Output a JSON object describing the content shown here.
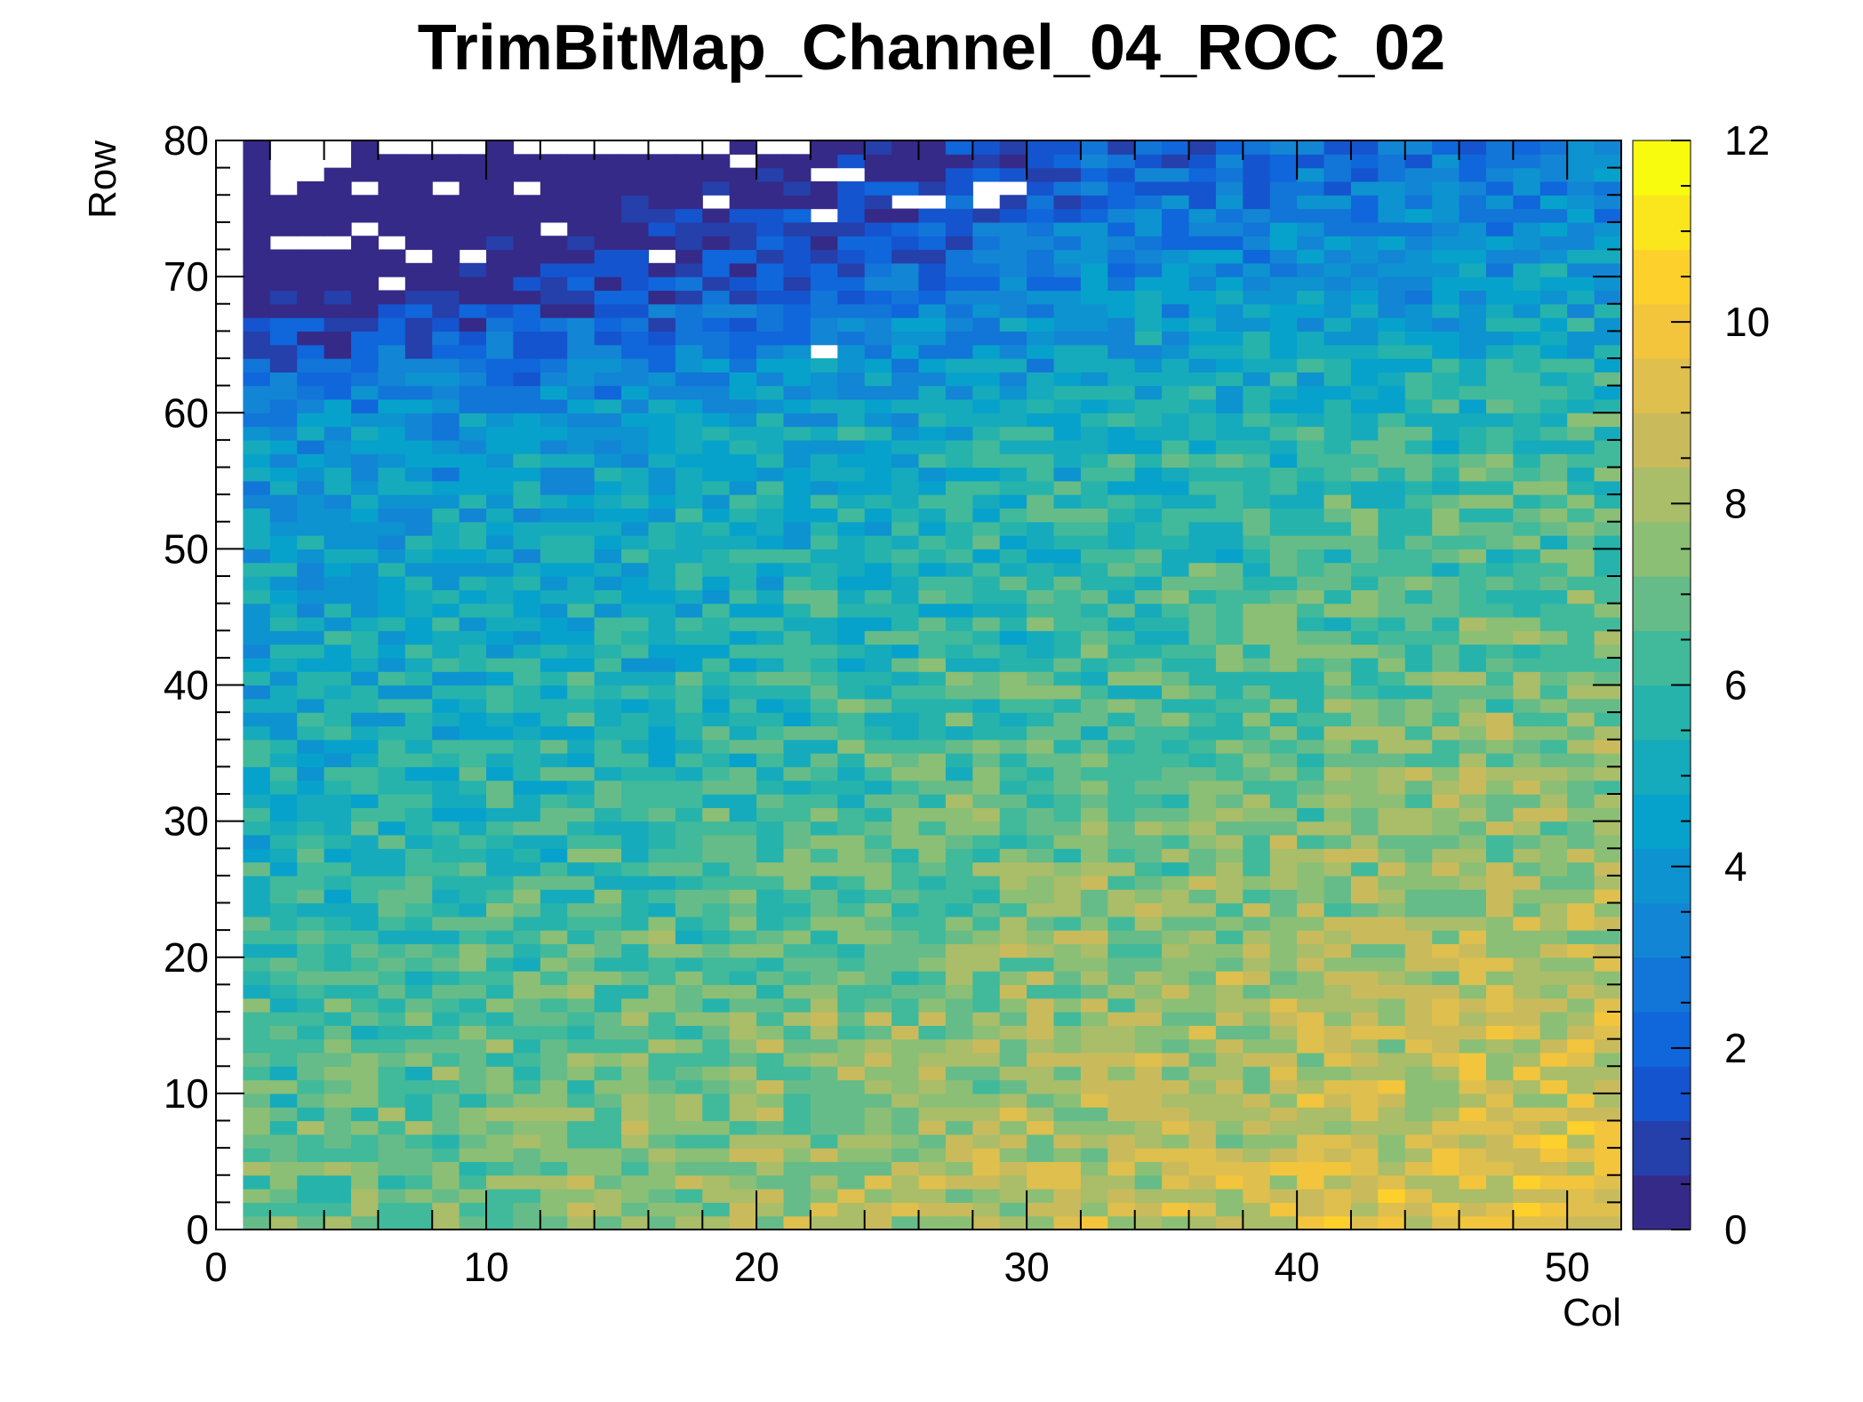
{
  "chart_data": {
    "type": "heatmap",
    "title": "TrimBitMap_Channel_04_ROC_02",
    "xlabel": "Col",
    "ylabel": "Row",
    "xlim": [
      0,
      52
    ],
    "ylim": [
      0,
      80
    ],
    "zlim": [
      0,
      12
    ],
    "x_ticks": [
      0,
      10,
      20,
      30,
      40,
      50
    ],
    "y_ticks": [
      0,
      10,
      20,
      30,
      40,
      50,
      60,
      70,
      80
    ],
    "z_ticks": [
      0,
      2,
      4,
      6,
      8,
      10,
      12
    ],
    "grid": false,
    "colorbar": "right",
    "colormap": "kBird",
    "colormap_stops": [
      "#352a87",
      "#0f5cdd",
      "#1481d6",
      "#06a4ca",
      "#2eb7a4",
      "#87bf77",
      "#d1bb59",
      "#fec832",
      "#f9fb0e"
    ],
    "empty_cell_color": "#ffffff",
    "cols": 52,
    "rows": 80,
    "description_of_values": "Trim bit per pixel. Near zero/empty (white) in the top-left corner (rows 65-79, cols 0-30), low blue values (2-4) across rows 55-79, mid values (5-7) in the center, and high yellow values (8-11) toward the bottom-right (rows 0-25, cols 35-51). Column 0 and row 79 are partly empty.",
    "trend_model": {
      "base": 6.0,
      "col_slope": 0.045,
      "row_slope": -0.055,
      "row_center": 40,
      "col_center": 26,
      "top_left_drop_rows_from": 58,
      "top_left_drop_strength": 0.22,
      "noise_amplitude": 1.3
    },
    "empty_cells": [
      [
        2,
        79
      ],
      [
        3,
        79
      ],
      [
        4,
        79
      ],
      [
        7,
        79
      ],
      [
        8,
        79
      ],
      [
        9,
        79
      ],
      [
        11,
        79
      ],
      [
        12,
        79
      ],
      [
        14,
        79
      ],
      [
        15,
        79
      ],
      [
        20,
        79
      ],
      [
        21,
        79
      ],
      [
        2,
        78
      ],
      [
        3,
        78
      ],
      [
        4,
        78
      ],
      [
        19,
        78
      ],
      [
        2,
        77
      ],
      [
        3,
        77
      ],
      [
        22,
        77
      ],
      [
        23,
        77
      ],
      [
        2,
        76
      ],
      [
        5,
        76
      ],
      [
        8,
        76
      ],
      [
        11,
        76
      ],
      [
        28,
        76
      ],
      [
        29,
        76
      ],
      [
        18,
        75
      ],
      [
        25,
        75
      ],
      [
        26,
        75
      ],
      [
        28,
        75
      ],
      [
        22,
        74
      ],
      [
        12,
        73
      ],
      [
        5,
        73
      ],
      [
        2,
        72
      ],
      [
        3,
        72
      ],
      [
        4,
        72
      ],
      [
        6,
        72
      ],
      [
        7,
        71
      ],
      [
        9,
        71
      ],
      [
        16,
        71
      ],
      [
        6,
        69
      ],
      [
        22,
        64
      ]
    ]
  }
}
